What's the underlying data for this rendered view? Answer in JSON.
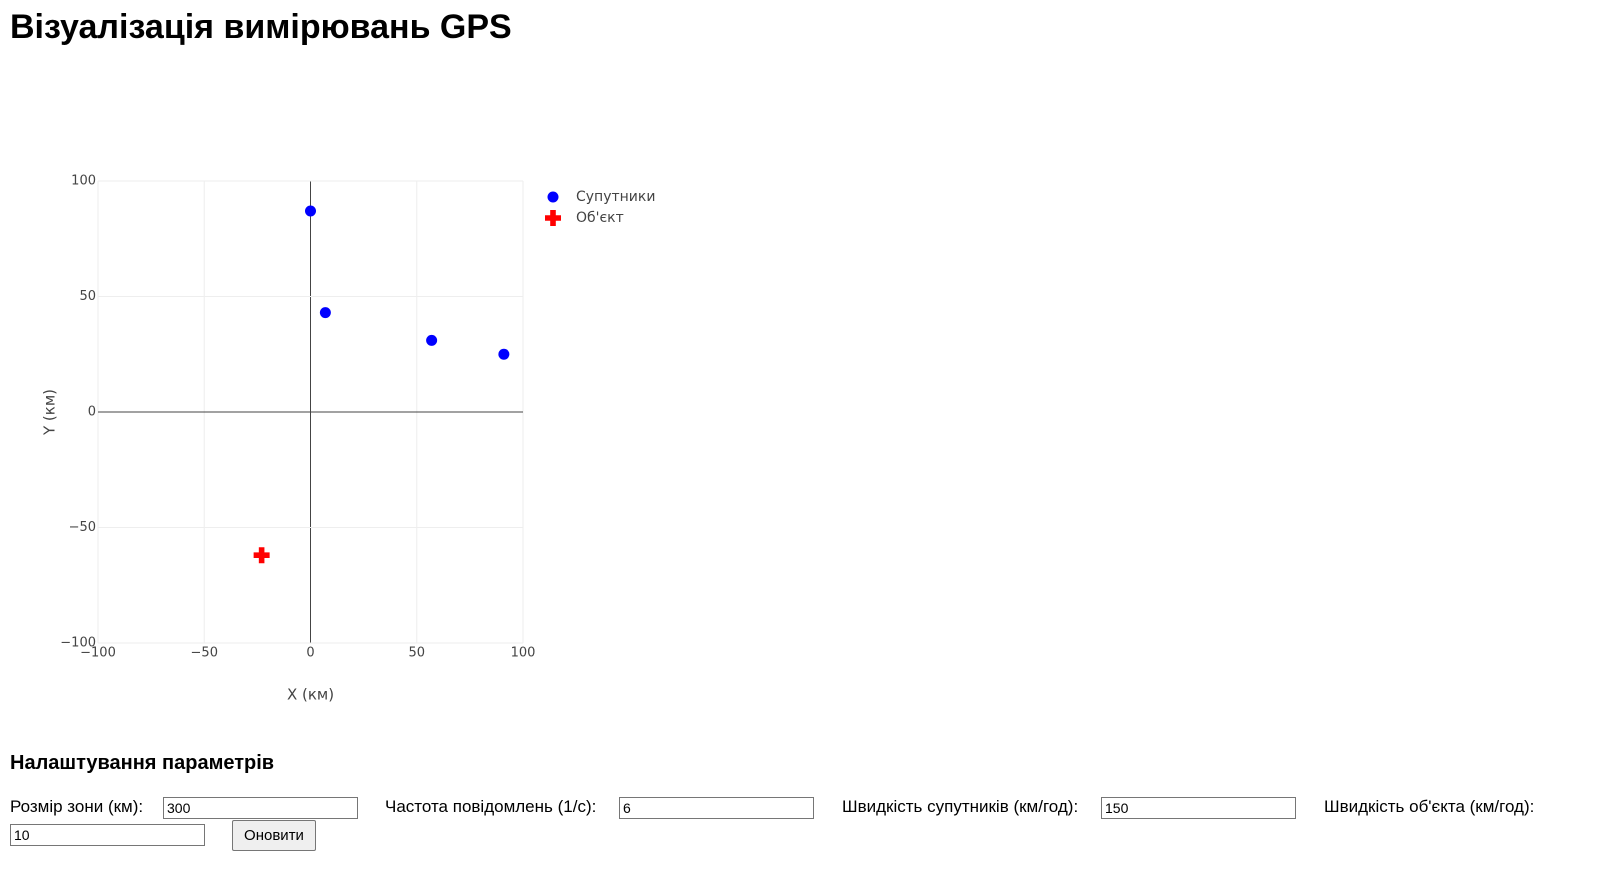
{
  "header": {
    "title": "Візуалізація вимірювань GPS"
  },
  "chart_data": {
    "type": "scatter",
    "xlabel": "X (км)",
    "ylabel": "Y (км)",
    "xlim": [
      -100,
      100
    ],
    "ylim": [
      -100,
      100
    ],
    "xticks": [
      {
        "value": -100,
        "label": "−100"
      },
      {
        "value": -50,
        "label": "−50"
      },
      0,
      50,
      100
    ],
    "yticks": [
      {
        "value": -100,
        "label": "−100"
      },
      {
        "value": -50,
        "label": "−50"
      },
      0,
      50,
      100
    ],
    "grid": true,
    "legend": "right",
    "series": [
      {
        "name": "Супутники",
        "color": "#0000ff",
        "marker": "circle",
        "x": [
          0,
          7,
          57,
          91
        ],
        "values": [
          87,
          43,
          31,
          25
        ]
      },
      {
        "name": "Об'єкт",
        "color": "#ff0000",
        "marker": "cross",
        "x": [
          -23
        ],
        "values": [
          -62
        ]
      }
    ]
  },
  "settings": {
    "heading": "Налаштування параметрів",
    "fields": [
      {
        "label": "Розмір зони (км):",
        "value": "300"
      },
      {
        "label": "Частота повідомлень (1/с):",
        "value": "6"
      },
      {
        "label": "Швидкість супутників (км/год):",
        "value": "150"
      },
      {
        "label": "Швидкість об'єкта (км/год):",
        "value": "10"
      }
    ],
    "button": "Оновити"
  }
}
